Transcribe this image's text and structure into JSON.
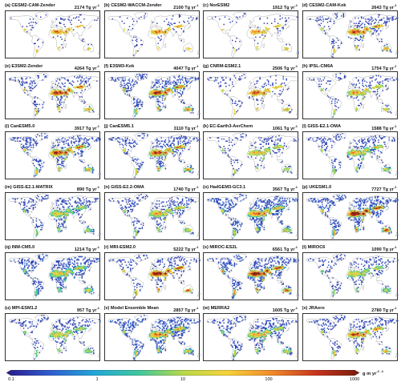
{
  "figure": {
    "panels": [
      {
        "label": "(a) CESM2-CAM-Zender",
        "value": "2174 Tg yr",
        "intensity": 0.45,
        "coverage": 0.35
      },
      {
        "label": "(b) CESM2-WACCM-Zender",
        "value": "2100 Tg yr",
        "intensity": 0.45,
        "coverage": 0.35
      },
      {
        "label": "(c) NorESM2",
        "value": "1912 Tg yr",
        "intensity": 0.42,
        "coverage": 0.35
      },
      {
        "label": "(d) CESM2-CAM-Kok",
        "value": "2643 Tg yr",
        "intensity": 0.55,
        "coverage": 0.55
      },
      {
        "label": "(e) E3SM2-Zender",
        "value": "4264 Tg yr",
        "intensity": 0.6,
        "coverage": 0.55
      },
      {
        "label": "(f) E3SM3-Kok",
        "value": "4047 Tg yr",
        "intensity": 0.62,
        "coverage": 0.75
      },
      {
        "label": "(g) CNRM-ESM2.1",
        "value": "2506 Tg yr",
        "intensity": 0.5,
        "coverage": 0.45
      },
      {
        "label": "(h) IPSL-CM6A",
        "value": "1754 Tg yr",
        "intensity": 0.4,
        "coverage": 0.5
      },
      {
        "label": "(i) CanESM5.0",
        "value": "3917 Tg yr",
        "intensity": 0.62,
        "coverage": 0.75
      },
      {
        "label": "(j) CanESM5.1",
        "value": "3110 Tg yr",
        "intensity": 0.58,
        "coverage": 0.7
      },
      {
        "label": "(k) EC-Earth3-AerChem",
        "value": "1061 Tg yr",
        "intensity": 0.35,
        "coverage": 0.5
      },
      {
        "label": "(l) GISS-E2.1-OMA",
        "value": "1588 Tg yr",
        "intensity": 0.38,
        "coverage": 0.65
      },
      {
        "label": "(m) GISS-E2.1-MATRIX",
        "value": "890 Tg yr",
        "intensity": 0.3,
        "coverage": 0.65
      },
      {
        "label": "(n) GISS-E2.2-OMA",
        "value": "1740 Tg yr",
        "intensity": 0.4,
        "coverage": 0.65
      },
      {
        "label": "(o) HadGEM3-GC3.1",
        "value": "3567 Tg yr",
        "intensity": 0.5,
        "coverage": 0.95
      },
      {
        "label": "(p) UKESM1.0",
        "value": "7727 Tg yr",
        "intensity": 0.75,
        "coverage": 0.9
      },
      {
        "label": "(q) INM-CM5.0",
        "value": "1214 Tg yr",
        "intensity": 0.32,
        "coverage": 0.85
      },
      {
        "label": "(r) MRI-ESM2.0",
        "value": "5222 Tg yr",
        "intensity": 0.7,
        "coverage": 0.6
      },
      {
        "label": "(s) MIROC-ES2L",
        "value": "6561 Tg yr",
        "intensity": 0.72,
        "coverage": 0.8
      },
      {
        "label": "(t) MIROC6",
        "value": "1090 Tg yr",
        "intensity": 0.33,
        "coverage": 0.6
      },
      {
        "label": "(u) MPI-ESM1.2",
        "value": "957 Tg yr",
        "intensity": 0.3,
        "coverage": 0.6
      },
      {
        "label": "(v) Model Ensemble Mean",
        "value": "2857 Tg yr",
        "intensity": 0.5,
        "coverage": 0.9
      },
      {
        "label": "(w) MERRA2",
        "value": "1605 Tg yr",
        "intensity": 0.4,
        "coverage": 0.7
      },
      {
        "label": "(x) JRAero",
        "value": "2780 Tg yr",
        "intensity": 0.55,
        "coverage": 0.65
      }
    ],
    "colorbar": {
      "ticks": [
        "0.1",
        "1",
        "10",
        "100",
        "1000"
      ],
      "unit": "g m yr",
      "colors": [
        "#2b1a8c",
        "#2f5fd0",
        "#22a7d8",
        "#3fc79f",
        "#b6d84a",
        "#f6d23a",
        "#f08c2a",
        "#c8361d",
        "#7a1a0c"
      ]
    }
  }
}
